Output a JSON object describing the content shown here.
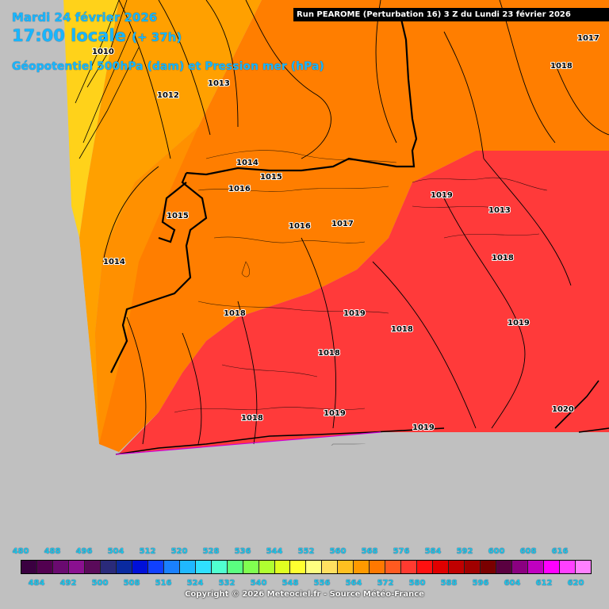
{
  "header": {
    "date": "Mardi 24 février 2026",
    "time": "17:00 locale",
    "offset": "(+ 37h)",
    "variable": "Géopotentiel 500hPa (dam) et Pression mer (hPa)"
  },
  "run_title": "Run PEAROME (Perturbation 16) 3 Z du Lundi 23 février 2026",
  "isobar_labels": [
    "1010",
    "1012",
    "1013",
    "1014",
    "1015",
    "1016",
    "1015",
    "1016",
    "1017",
    "1019",
    "1013",
    "1014",
    "1018",
    "1018",
    "1019",
    "1018",
    "1019",
    "1018",
    "1018",
    "1019",
    "1020",
    "1017",
    "1018",
    "1019"
  ],
  "scale": {
    "top_values": [
      480,
      488,
      496,
      504,
      512,
      520,
      528,
      536,
      544,
      552,
      560,
      568,
      576,
      584,
      592,
      600,
      608,
      616
    ],
    "bottom_values": [
      484,
      492,
      500,
      508,
      516,
      524,
      532,
      540,
      548,
      556,
      564,
      572,
      580,
      588,
      596,
      604,
      612,
      620
    ],
    "colors": [
      "#3a0040",
      "#520050",
      "#6a0a70",
      "#8a1090",
      "#5a0a5a",
      "#2a2a7a",
      "#0a2aa0",
      "#0010d8",
      "#1040ff",
      "#1a80ff",
      "#20b8ff",
      "#30e0ff",
      "#50ffd0",
      "#5aff80",
      "#80ff50",
      "#b0ff30",
      "#e0ff20",
      "#ffff30",
      "#ffff80",
      "#ffe060",
      "#ffc020",
      "#ff9a00",
      "#ff7800",
      "#ff5a20",
      "#ff3a30",
      "#ff1010",
      "#e00000",
      "#c00000",
      "#a00000",
      "#7a0000",
      "#5a0040",
      "#8a0080",
      "#c000c0",
      "#ff00ff",
      "#ff40ff",
      "#ff80ff"
    ]
  },
  "copyright": "Copyright © 2026 Meteociel.fr - Source Météo-France",
  "colors": {
    "yellow": "#ffd21a",
    "light_orange": "#ffa000",
    "orange": "#ff7e00",
    "dark_orange": "#ff6000",
    "red": "#ff3a3a",
    "land": "#c0c0c0"
  }
}
